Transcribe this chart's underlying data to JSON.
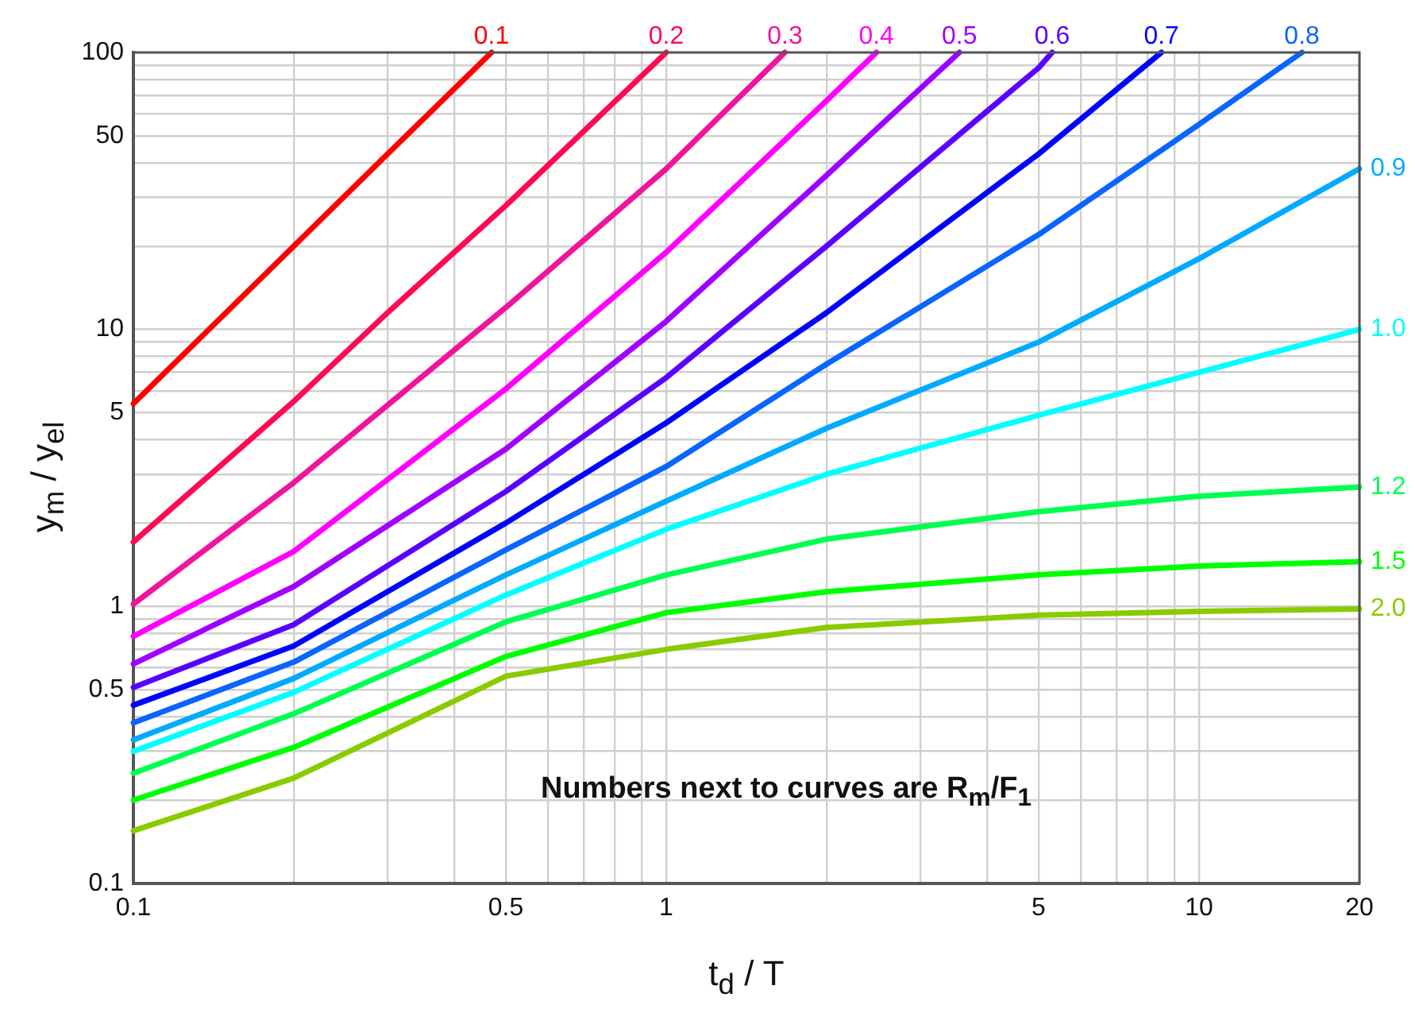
{
  "chart_data": {
    "type": "line",
    "xlabel": "t$_{d}$ / T",
    "ylabel": "y$_{m}$ / y$_{el}$",
    "log": "xy",
    "grid": true,
    "legend": false,
    "marker": "none",
    "line_style": "solid",
    "xlim": [
      0.1,
      20
    ],
    "ylim": [
      0.1,
      100
    ],
    "xticks": [
      0.1,
      {
        "value": 0.2,
        "label": null
      },
      {
        "value": 0.3,
        "label": null
      },
      {
        "value": 0.4,
        "label": null
      },
      0.5,
      {
        "value": 0.6,
        "label": null
      },
      {
        "value": 0.7,
        "label": null
      },
      {
        "value": 0.8,
        "label": null
      },
      {
        "value": 0.9,
        "label": null
      },
      1,
      {
        "value": 2,
        "label": null
      },
      {
        "value": 3,
        "label": null
      },
      {
        "value": 4,
        "label": null
      },
      5,
      {
        "value": 6,
        "label": null
      },
      {
        "value": 7,
        "label": null
      },
      {
        "value": 8,
        "label": null
      },
      {
        "value": 9,
        "label": null
      },
      10,
      20
    ],
    "yticks": [
      0.1,
      {
        "value": 0.2,
        "label": null
      },
      {
        "value": 0.3,
        "label": null
      },
      {
        "value": 0.4,
        "label": null
      },
      0.5,
      {
        "value": 0.6,
        "label": null
      },
      {
        "value": 0.7,
        "label": null
      },
      {
        "value": 0.8,
        "label": null
      },
      {
        "value": 0.9,
        "label": null
      },
      1,
      {
        "value": 2,
        "label": null
      },
      {
        "value": 3,
        "label": null
      },
      {
        "value": 4,
        "label": null
      },
      5,
      {
        "value": 6,
        "label": null
      },
      {
        "value": 7,
        "label": null
      },
      {
        "value": 8,
        "label": null
      },
      {
        "value": 9,
        "label": null
      },
      10,
      {
        "value": 20,
        "label": null
      },
      {
        "value": 30,
        "label": null
      },
      {
        "value": 40,
        "label": null
      },
      50,
      {
        "value": 60,
        "label": null
      },
      {
        "value": 70,
        "label": null
      },
      {
        "value": 80,
        "label": null
      },
      {
        "value": 90,
        "label": null
      },
      100
    ],
    "annotations": [
      "Numbers next to curves are R$_{m}$/F$_{1}$"
    ],
    "series": [
      {
        "name": "0.1",
        "color": "#ff0000",
        "x": [
          0.1,
          0.2,
          0.3,
          0.47
        ],
        "values": [
          5.4,
          20,
          43,
          100
        ]
      },
      {
        "name": "0.2",
        "color": "#ff0a50",
        "x": [
          0.1,
          0.2,
          0.3,
          0.5,
          1
        ],
        "values": [
          1.71,
          5.5,
          11.5,
          28,
          100
        ]
      },
      {
        "name": "0.3",
        "color": "#f0149b",
        "x": [
          0.1,
          0.2,
          0.5,
          1,
          1.67
        ],
        "values": [
          1.02,
          2.8,
          12,
          38,
          100
        ]
      },
      {
        "name": "0.4",
        "color": "#ff00ff",
        "x": [
          0.1,
          0.2,
          0.5,
          1,
          2,
          2.48
        ],
        "values": [
          0.78,
          1.58,
          6.1,
          19,
          67,
          100
        ]
      },
      {
        "name": "0.5",
        "color": "#a000ff",
        "x": [
          0.1,
          0.2,
          0.5,
          1,
          2,
          3.55
        ],
        "values": [
          0.62,
          1.18,
          3.7,
          10.7,
          36,
          100
        ]
      },
      {
        "name": "0.6",
        "color": "#5a00ff",
        "x": [
          0.1,
          0.2,
          0.5,
          1,
          2,
          5,
          5.3
        ],
        "values": [
          0.51,
          0.86,
          2.6,
          6.7,
          20,
          88,
          100
        ]
      },
      {
        "name": "0.7",
        "color": "#0000ff",
        "x": [
          0.1,
          0.2,
          0.5,
          1,
          2,
          5,
          8.5
        ],
        "values": [
          0.44,
          0.72,
          2,
          4.6,
          11.5,
          43,
          100
        ]
      },
      {
        "name": "0.8",
        "color": "#0a64ff",
        "x": [
          0.1,
          0.2,
          0.5,
          1,
          2,
          5,
          10,
          15.6
        ],
        "values": [
          0.38,
          0.63,
          1.6,
          3.2,
          7.5,
          22,
          55,
          100
        ]
      },
      {
        "name": "0.9",
        "color": "#00aaff",
        "x": [
          0.1,
          0.2,
          0.5,
          1,
          2,
          5,
          10,
          20
        ],
        "values": [
          0.33,
          0.55,
          1.3,
          2.4,
          4.4,
          9,
          18,
          38
        ]
      },
      {
        "name": "1.0",
        "color": "#00ffff",
        "x": [
          0.1,
          0.2,
          0.5,
          1,
          2,
          5,
          10,
          20
        ],
        "values": [
          0.3,
          0.49,
          1.1,
          1.9,
          3,
          4.9,
          7,
          10
        ]
      },
      {
        "name": "1.2",
        "color": "#00ff50",
        "x": [
          0.1,
          0.2,
          0.5,
          1,
          2,
          5,
          10,
          20
        ],
        "values": [
          0.25,
          0.41,
          0.88,
          1.3,
          1.75,
          2.2,
          2.5,
          2.7
        ]
      },
      {
        "name": "1.5",
        "color": "#00ff00",
        "x": [
          0.1,
          0.2,
          0.5,
          1,
          2,
          5,
          10,
          20
        ],
        "values": [
          0.2,
          0.31,
          0.66,
          0.95,
          1.13,
          1.3,
          1.4,
          1.45
        ]
      },
      {
        "name": "2.0",
        "color": "#88cc00",
        "x": [
          0.1,
          0.2,
          0.5,
          1,
          2,
          5,
          10,
          20
        ],
        "values": [
          0.155,
          0.24,
          0.56,
          0.7,
          0.84,
          0.93,
          0.96,
          0.98
        ]
      }
    ]
  }
}
